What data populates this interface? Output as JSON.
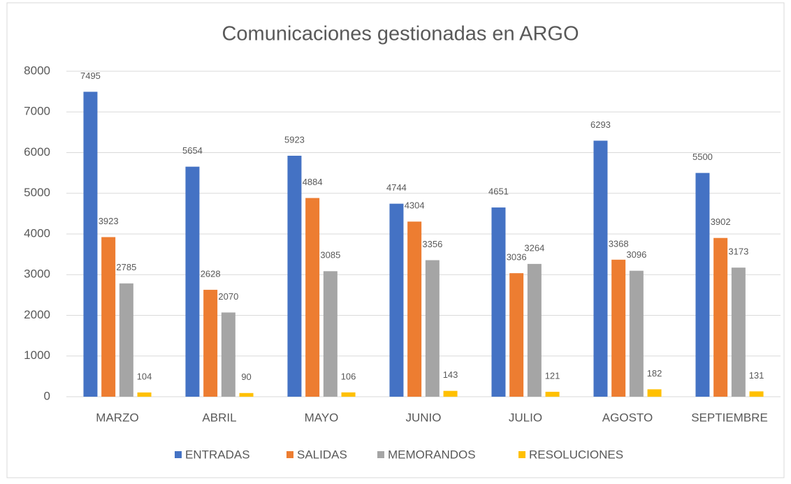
{
  "chart_data": {
    "type": "bar",
    "title": "Comunicaciones gestionadas en ARGO",
    "categories": [
      "MARZO",
      "ABRIL",
      "MAYO",
      "JUNIO",
      "JULIO",
      "AGOSTO",
      "SEPTIEMBRE"
    ],
    "series": [
      {
        "name": "ENTRADAS",
        "color": "#4472c4",
        "values": [
          7495,
          5654,
          5923,
          4744,
          4651,
          6293,
          5500
        ]
      },
      {
        "name": "SALIDAS",
        "color": "#ed7d31",
        "values": [
          3923,
          2628,
          4884,
          4304,
          3036,
          3368,
          3902
        ]
      },
      {
        "name": "MEMORANDOS",
        "color": "#a5a5a5",
        "values": [
          2785,
          2070,
          3085,
          3356,
          3264,
          3096,
          3173
        ]
      },
      {
        "name": "RESOLUCIONES",
        "color": "#ffc000",
        "values": [
          104,
          90,
          106,
          143,
          121,
          182,
          131
        ]
      }
    ],
    "ylim": [
      0,
      8000
    ],
    "yticks": [
      0,
      1000,
      2000,
      3000,
      4000,
      5000,
      6000,
      7000,
      8000
    ],
    "grid": true,
    "legend": "bottom"
  }
}
